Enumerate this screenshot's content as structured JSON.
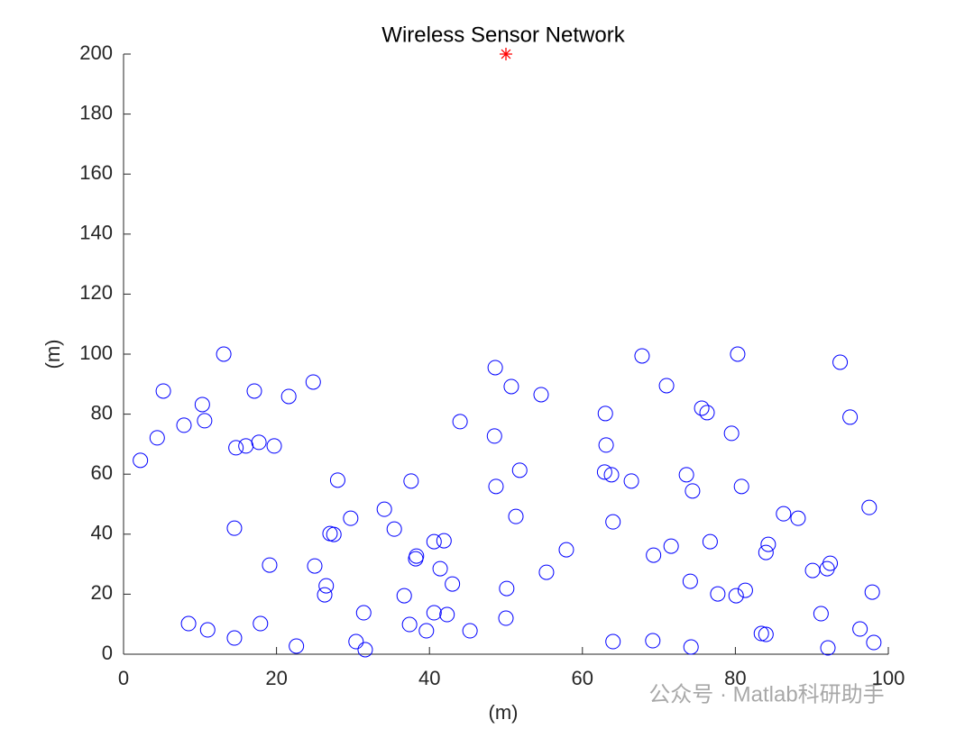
{
  "chart_data": {
    "type": "scatter",
    "title": "Wireless Sensor Network",
    "x_label": "(m)",
    "y_label": "(m)",
    "xlim": [
      0,
      100
    ],
    "ylim": [
      0,
      200
    ],
    "xticks": [
      0,
      20,
      40,
      60,
      80,
      100
    ],
    "yticks": [
      0,
      20,
      40,
      60,
      80,
      100,
      120,
      140,
      160,
      180,
      200
    ],
    "series": [
      {
        "marker": "circle",
        "color": "#0000ff",
        "x": [
          2.2,
          4.4,
          5.2,
          7.9,
          10.3,
          10.6,
          13.1,
          17.1,
          14.7,
          16.0,
          17.7,
          19.7,
          21.6,
          24.8,
          14.5,
          19.1,
          8.5,
          11.0,
          14.5,
          17.9,
          22.6,
          28.0,
          27.0,
          27.5,
          29.7,
          25.0,
          26.5,
          26.3,
          31.4,
          30.4,
          31.6,
          34.1,
          35.4,
          37.6,
          36.7,
          37.4,
          38.3,
          38.2,
          39.6,
          40.6,
          41.9,
          41.4,
          40.6,
          42.3,
          43.0,
          44.0,
          45.3,
          48.6,
          50.7,
          48.5,
          48.7,
          51.8,
          51.3,
          50.1,
          50.0,
          54.6,
          55.3,
          57.9,
          63.0,
          63.1,
          62.9,
          63.8,
          64.0,
          66.4,
          64.0,
          67.8,
          71.0,
          69.3,
          69.2,
          71.6,
          73.6,
          74.4,
          75.6,
          76.3,
          76.7,
          74.1,
          77.7,
          74.2,
          79.5,
          80.3,
          80.8,
          80.1,
          81.3,
          84.3,
          84.0,
          83.4,
          84.0,
          86.3,
          88.2,
          90.1,
          92.4,
          92.0,
          91.2,
          92.1,
          93.7,
          95.0,
          97.5,
          97.9,
          96.3,
          98.1
        ],
        "y": [
          64.6,
          72.1,
          87.7,
          76.3,
          83.2,
          77.8,
          100,
          87.7,
          68.8,
          69.4,
          70.6,
          69.4,
          85.9,
          90.7,
          42.0,
          29.7,
          10.2,
          8.1,
          5.4,
          10.2,
          2.7,
          58.0,
          40.2,
          39.9,
          45.3,
          29.4,
          22.8,
          19.8,
          13.8,
          4.2,
          1.5,
          48.3,
          41.7,
          57.7,
          19.5,
          9.9,
          32.7,
          31.8,
          7.8,
          37.5,
          37.8,
          28.5,
          13.8,
          13.2,
          23.4,
          77.5,
          7.8,
          95.5,
          89.2,
          72.7,
          55.9,
          61.3,
          45.9,
          21.9,
          12.0,
          86.5,
          27.3,
          34.8,
          80.2,
          69.7,
          60.7,
          59.8,
          44.1,
          57.7,
          4.2,
          99.4,
          89.5,
          33.0,
          4.5,
          36.0,
          59.8,
          54.4,
          82.0,
          80.5,
          37.5,
          24.3,
          20.1,
          2.4,
          73.6,
          100,
          55.9,
          19.5,
          21.3,
          36.6,
          33.9,
          6.9,
          6.6,
          46.8,
          45.3,
          27.9,
          30.3,
          28.5,
          13.5,
          2.1,
          97.3,
          79.0,
          48.9,
          20.7,
          8.4,
          3.9
        ]
      },
      {
        "marker": "star",
        "color": "#ff0000",
        "x": [
          50
        ],
        "y": [
          200
        ]
      }
    ],
    "watermark": "公众号 · Matlab科研助手"
  }
}
